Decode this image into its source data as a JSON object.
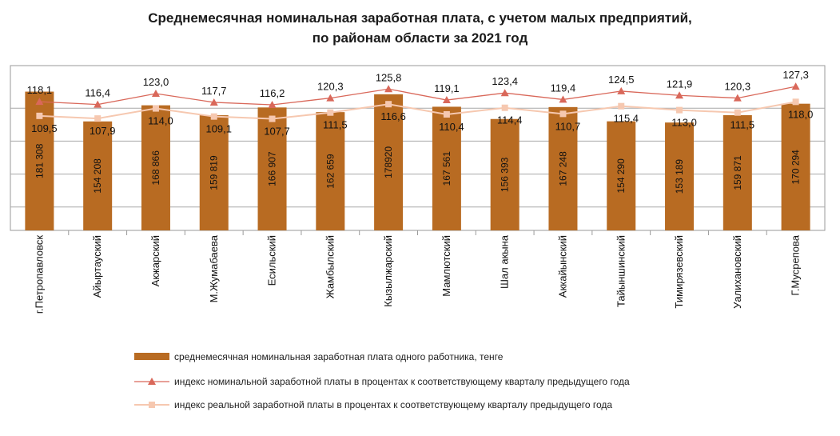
{
  "chart_data": {
    "type": "bar",
    "title_lines": [
      "Среднемесячная номинальная заработная плата, с учетом малых предприятий,",
      "по районам области за 2021 год"
    ],
    "categories": [
      "г.Петропавловск",
      "Айыртауский",
      "Акжарский",
      "М.Жумабаева",
      "Есильский",
      "Жамбылский",
      "Кызылжарский",
      "Мамлютский",
      "Шал акына",
      "Аккайынский",
      "Тайыншинский",
      "Тимирязевский",
      "Уалихановский",
      "Г.Мусрепова"
    ],
    "series": [
      {
        "name": "среднемесячная номинальная заработная плата одного работника, тенге",
        "kind": "bar",
        "color": "#b86b22",
        "values": [
          181308,
          154208,
          168866,
          159819,
          166907,
          162659,
          178920,
          167561,
          156393,
          167248,
          154290,
          153189,
          159871,
          170294
        ],
        "labels": [
          "181 308",
          "154 208",
          "168 866",
          "159 819",
          "166 907",
          "162 659",
          "178920",
          "167 561",
          "156 393",
          "167 248",
          "154 290",
          "153 189",
          "159 871",
          "170 294"
        ]
      },
      {
        "name": "индекс номинальной заработной платы в процентах к соответствующему кварталу предыдущего года",
        "kind": "line",
        "marker": "triangle",
        "color": "#d9685a",
        "values": [
          118.1,
          116.4,
          123.0,
          117.7,
          116.2,
          120.3,
          125.8,
          119.1,
          123.4,
          119.4,
          124.5,
          121.9,
          120.3,
          127.3
        ],
        "labels": [
          "118,1",
          "116,4",
          "123,0",
          "117,7",
          "116,2",
          "120,3",
          "125,8",
          "119,1",
          "123,4",
          "119,4",
          "124,5",
          "121,9",
          "120,3",
          "127,3"
        ]
      },
      {
        "name": "индекс реальной заработной платы в процентах к соответствующему кварталу предыдущего года",
        "kind": "line",
        "marker": "square",
        "color": "#f6c8b0",
        "values": [
          109.5,
          107.9,
          114.0,
          109.1,
          107.7,
          111.5,
          116.6,
          110.4,
          114.4,
          110.7,
          115.4,
          113.0,
          111.5,
          118.0
        ],
        "labels": [
          "109,5",
          "107,9",
          "114,0",
          "109,1",
          "107,7",
          "111,5",
          "116,6",
          "110,4",
          "114,4",
          "110,7",
          "115,4",
          "113,0",
          "111,5",
          "118,0"
        ]
      }
    ],
    "grid": true,
    "legend_placement": "bottom"
  }
}
